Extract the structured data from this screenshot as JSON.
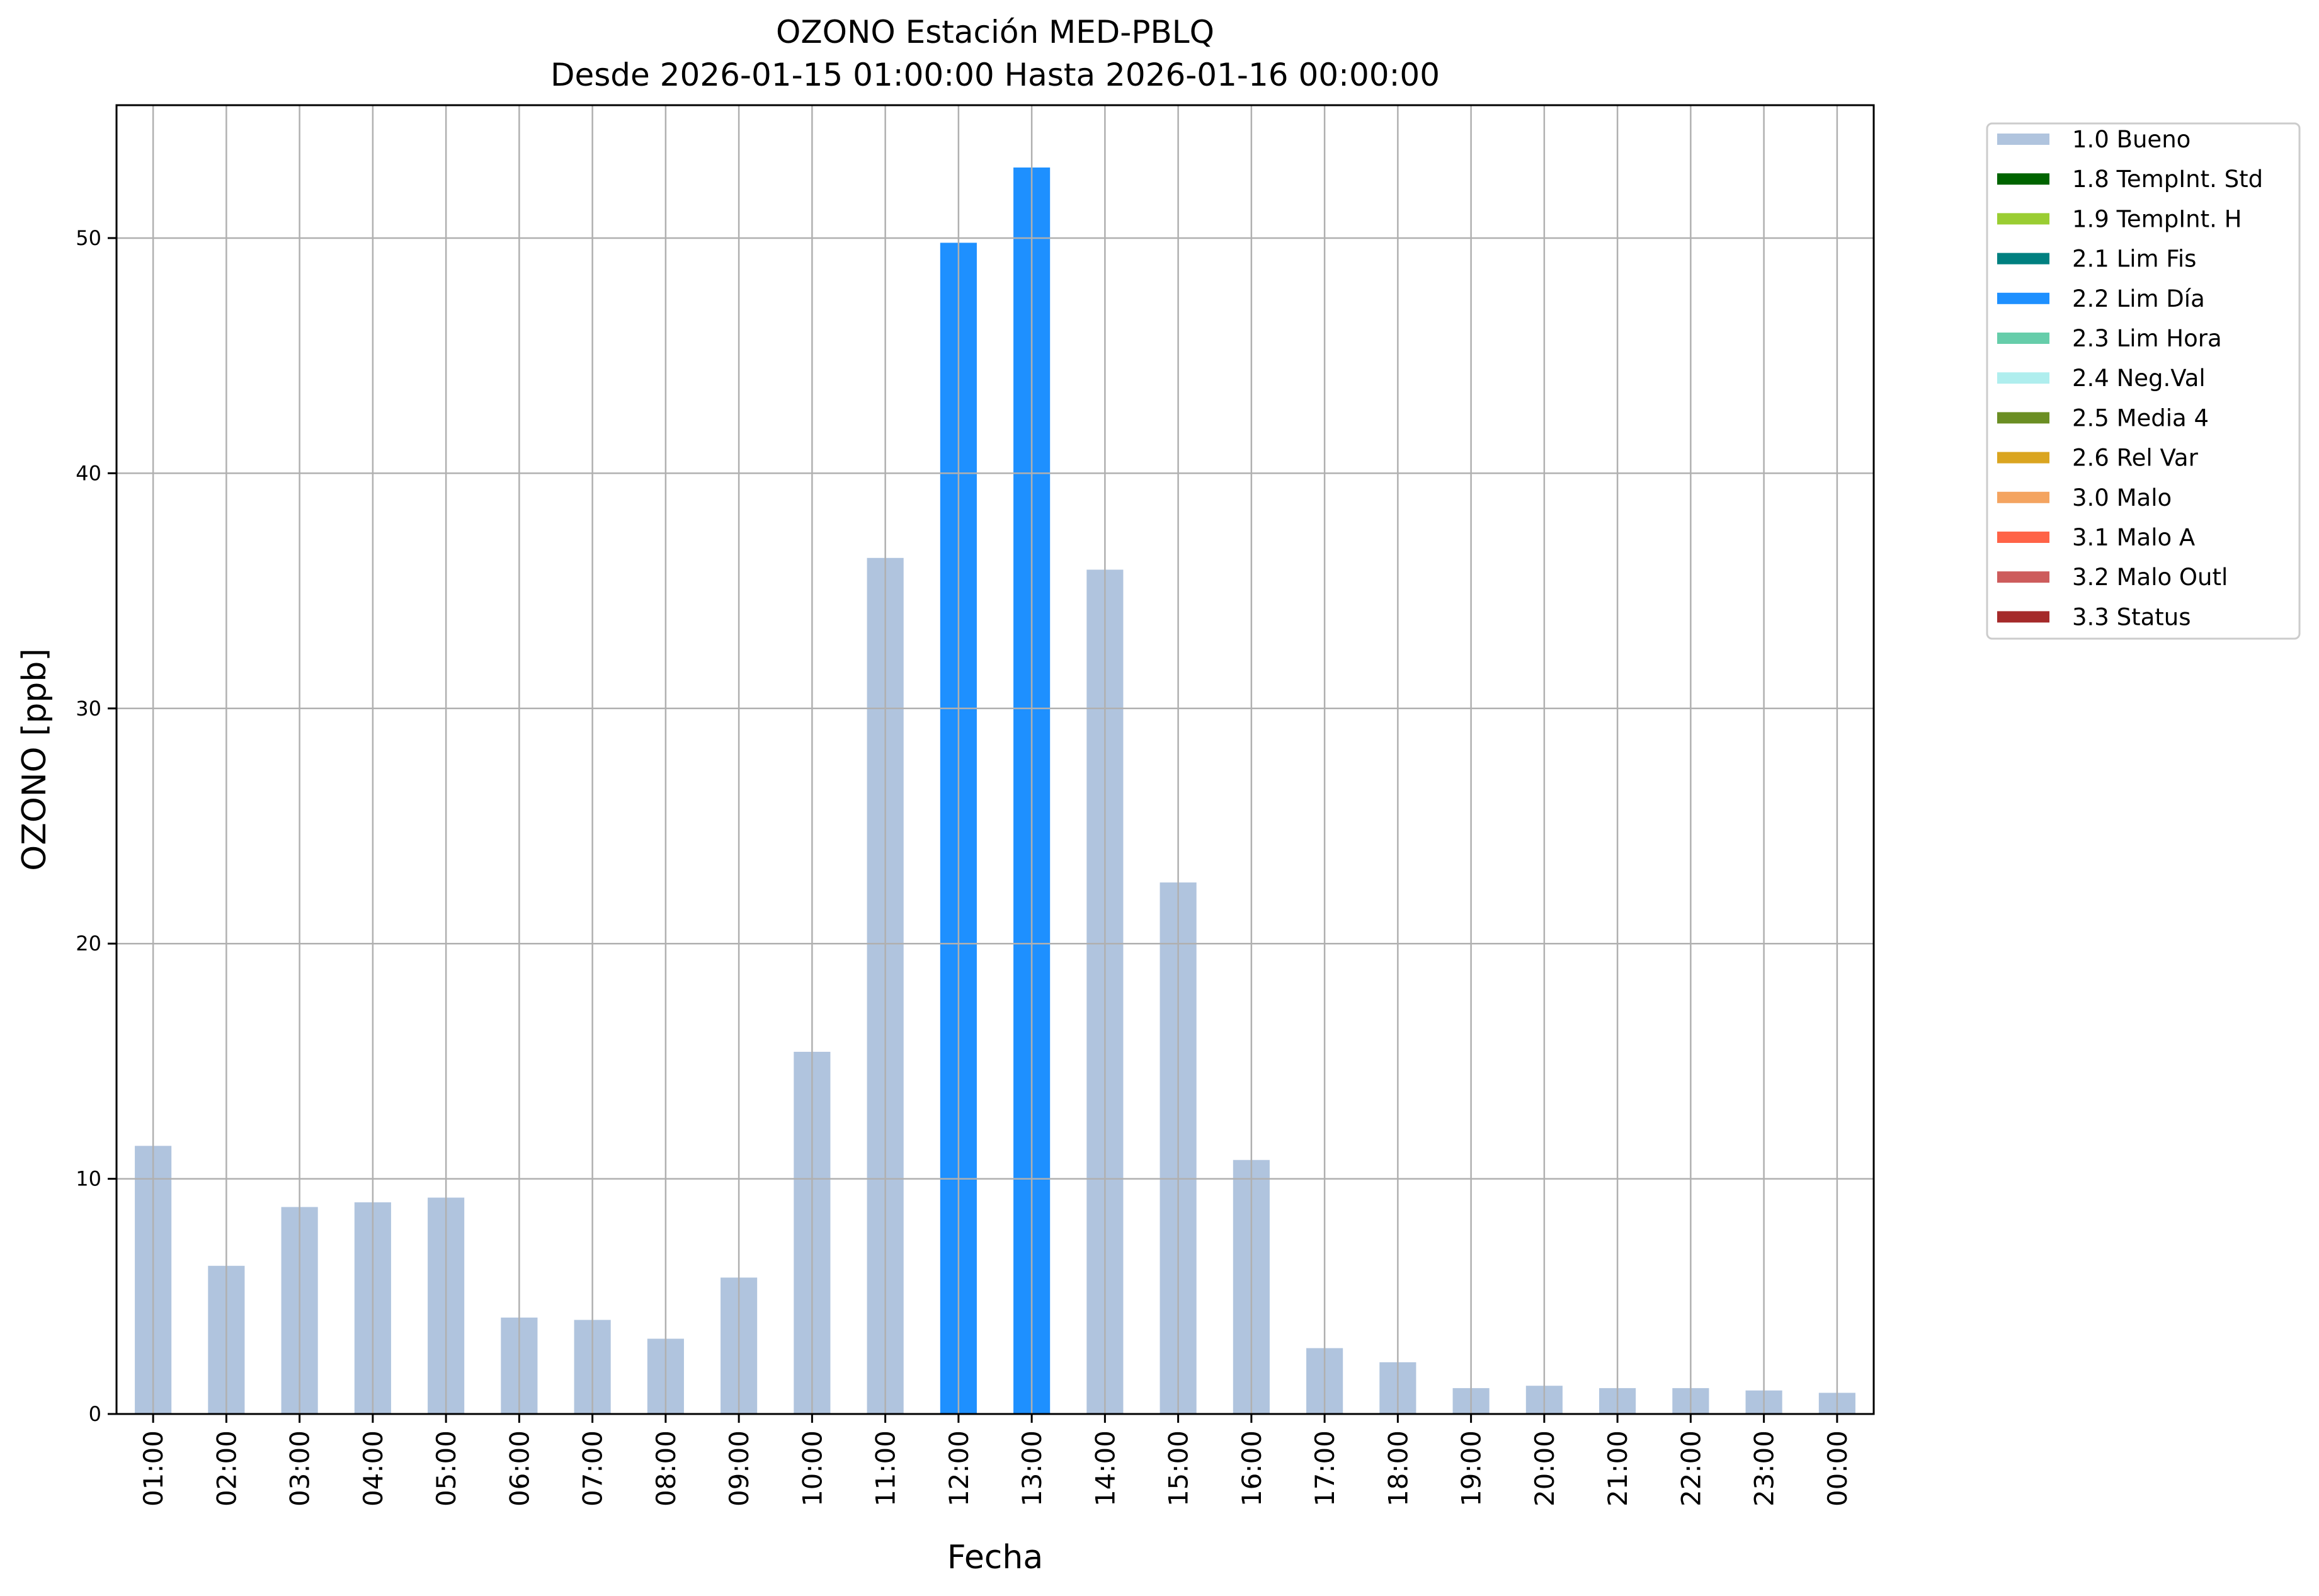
{
  "chart_data": {
    "type": "bar",
    "title": "OZONO Estación MED-PBLQ",
    "subtitle": "Desde 2026-01-15 01:00:00 Hasta 2026-01-16 00:00:00",
    "xlabel": "Fecha",
    "ylabel": "OZONO [ppb]",
    "ylim": [
      0,
      55.65
    ],
    "yticks": [
      0,
      10,
      20,
      30,
      40,
      50
    ],
    "grid": true,
    "legend_position": "outside-top-right",
    "categories": [
      "01:00",
      "02:00",
      "03:00",
      "04:00",
      "05:00",
      "06:00",
      "07:00",
      "08:00",
      "09:00",
      "10:00",
      "11:00",
      "12:00",
      "13:00",
      "14:00",
      "15:00",
      "16:00",
      "17:00",
      "18:00",
      "19:00",
      "20:00",
      "21:00",
      "22:00",
      "23:00",
      "00:00"
    ],
    "values": [
      11.4,
      6.3,
      8.8,
      9.0,
      9.2,
      4.1,
      4.0,
      3.2,
      5.8,
      15.4,
      36.4,
      49.8,
      53.0,
      35.9,
      22.6,
      10.8,
      2.8,
      2.2,
      1.1,
      1.2,
      1.1,
      1.1,
      1.0,
      0.9
    ],
    "flags": [
      "1.0 Bueno",
      "1.0 Bueno",
      "1.0 Bueno",
      "1.0 Bueno",
      "1.0 Bueno",
      "1.0 Bueno",
      "1.0 Bueno",
      "1.0 Bueno",
      "1.0 Bueno",
      "1.0 Bueno",
      "1.0 Bueno",
      "2.2 Lim Día",
      "2.2 Lim Día",
      "1.0 Bueno",
      "1.0 Bueno",
      "1.0 Bueno",
      "1.0 Bueno",
      "1.0 Bueno",
      "1.0 Bueno",
      "1.0 Bueno",
      "1.0 Bueno",
      "1.0 Bueno",
      "1.0 Bueno",
      "1.0 Bueno"
    ],
    "legend": [
      {
        "label": "1.0 Bueno",
        "color": "#b0c4de"
      },
      {
        "label": "1.8 TempInt. Std",
        "color": "#006400"
      },
      {
        "label": "1.9 TempInt. H",
        "color": "#9acd32"
      },
      {
        "label": "2.1 Lim Fis",
        "color": "#008080"
      },
      {
        "label": "2.2 Lim Día",
        "color": "#1e90ff"
      },
      {
        "label": "2.3 Lim Hora",
        "color": "#66cdaa"
      },
      {
        "label": "2.4 Neg.Val",
        "color": "#afeeee"
      },
      {
        "label": "2.5 Media 4",
        "color": "#6b8e23"
      },
      {
        "label": "2.6 Rel Var",
        "color": "#daa520"
      },
      {
        "label": "3.0 Malo",
        "color": "#f4a460"
      },
      {
        "label": "3.1 Malo A",
        "color": "#ff6347"
      },
      {
        "label": "3.2 Malo Outl",
        "color": "#cd5c5c"
      },
      {
        "label": "3.3 Status",
        "color": "#a52a2a"
      }
    ]
  }
}
